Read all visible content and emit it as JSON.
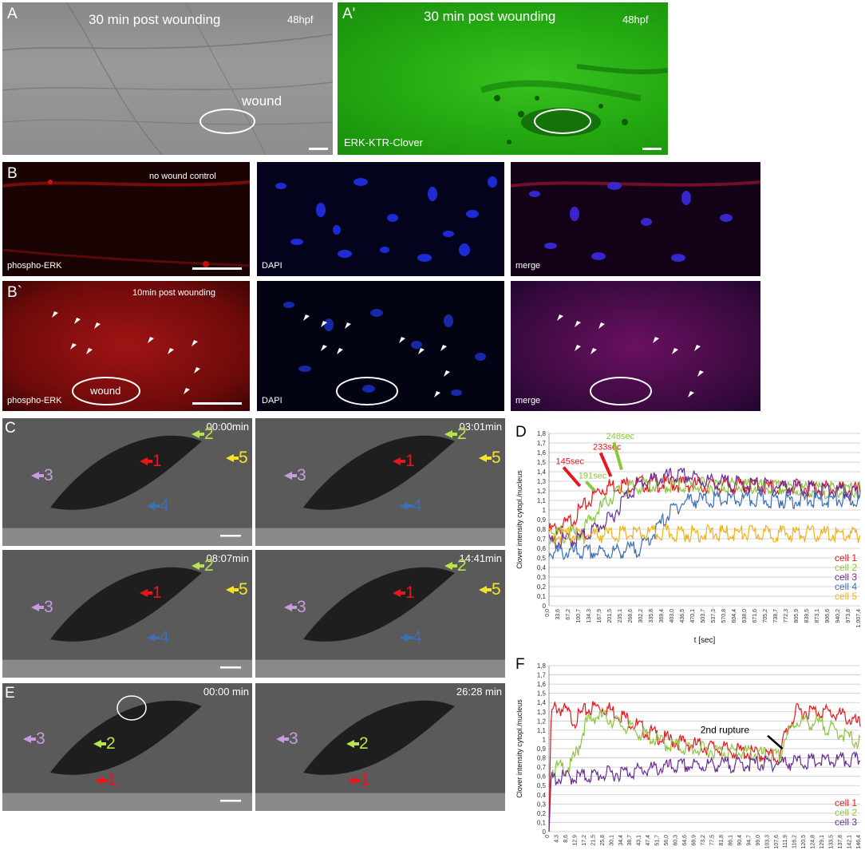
{
  "panel_a": {
    "letter": "A",
    "title": "30 min post wounding",
    "stage": "48hpf",
    "wound": "wound"
  },
  "panel_a2": {
    "letter": "A'",
    "title": "30 min post wounding",
    "stage": "48hpf",
    "reporter": "ERK-KTR-Clover"
  },
  "panel_b": {
    "letter": "B",
    "condition": "no wound control",
    "stain_red": "phospho-ERK",
    "stain_blue": "DAPI",
    "merge": "merge"
  },
  "panel_b2": {
    "letter": "B`",
    "condition": "10min post wounding",
    "stain_red": "phospho-ERK",
    "stain_blue": "DAPI",
    "merge": "merge",
    "wound": "wound"
  },
  "panel_c": {
    "letter": "C",
    "frames": [
      {
        "time": "00:00min",
        "labels": [
          "1",
          "2",
          "3",
          "4",
          "5"
        ]
      },
      {
        "time": "03:01min",
        "labels": [
          "1",
          "2",
          "3",
          "4",
          "5"
        ]
      },
      {
        "time": "08:07min",
        "labels": [
          "1",
          "2",
          "3",
          "4",
          "5"
        ]
      },
      {
        "time": "14:41min",
        "labels": [
          "1",
          "2",
          "3",
          "4",
          "5"
        ]
      }
    ]
  },
  "panel_e": {
    "letter": "E",
    "frames": [
      {
        "time": "00:00 min",
        "labels": [
          "1",
          "2",
          "3"
        ]
      },
      {
        "time": "26:28 min",
        "labels": [
          "1",
          "2",
          "3"
        ]
      }
    ]
  },
  "colors": {
    "cell1": "#e8161c",
    "cell2": "#8cc63f",
    "cell3": "#6a2c91",
    "cell4": "#3d6fb4",
    "cell5": "#f2b11b",
    "arrow3": "#c89be0",
    "arrow2": "#b7e34b",
    "arrow5": "#f5e425"
  },
  "chart_data": [
    {
      "panel": "D",
      "type": "line",
      "xlabel": "t [sec]",
      "ylabel": "Clover intensity cytopl./nucleus",
      "ylim": [
        0,
        1.8
      ],
      "yticks": [
        "0",
        "0,1",
        "0,2",
        "0,3",
        "0,4",
        "0,5",
        "0,6",
        "0,7",
        "0,8",
        "0,9",
        "1",
        "1,1",
        "1,2",
        "1,3",
        "1,4",
        "1,5",
        "1,6",
        "1,7",
        "1,8"
      ],
      "xticks": [
        "0,0",
        "33,6",
        "67,2",
        "100,7",
        "134,3",
        "167,9",
        "201,5",
        "235,1",
        "268,6",
        "302,2",
        "335,8",
        "369,4",
        "403,0",
        "436,5",
        "470,1",
        "503,7",
        "537,3",
        "570,8",
        "604,4",
        "638,0",
        "671,6",
        "705,2",
        "738,7",
        "772,3",
        "805,9",
        "839,5",
        "873,1",
        "906,6",
        "940,2",
        "973,8",
        "1.007,4"
      ],
      "xrange": [
        0,
        1007.4
      ],
      "grid": true,
      "legend_position": "bottom-right",
      "series": [
        {
          "name": "cell 1",
          "x": [
            0,
            60,
            120,
            160,
            200,
            300,
            400,
            500,
            600,
            700,
            800,
            900,
            1007
          ],
          "values": [
            0.82,
            0.9,
            1.1,
            1.25,
            1.3,
            1.32,
            1.32,
            1.3,
            1.3,
            1.28,
            1.28,
            1.27,
            1.25
          ]
        },
        {
          "name": "cell 2",
          "x": [
            0,
            100,
            150,
            190,
            230,
            300,
            400,
            500,
            600,
            700,
            800,
            900,
            1007
          ],
          "values": [
            0.78,
            0.8,
            1.0,
            1.15,
            1.25,
            1.3,
            1.3,
            1.3,
            1.3,
            1.28,
            1.26,
            1.25,
            1.25
          ]
        },
        {
          "name": "cell 3",
          "x": [
            0,
            100,
            200,
            250,
            300,
            400,
            450,
            500,
            600,
            700,
            800,
            900,
            1007
          ],
          "values": [
            0.7,
            0.75,
            0.95,
            1.2,
            1.33,
            1.4,
            1.4,
            1.35,
            1.32,
            1.3,
            1.28,
            1.25,
            1.2
          ]
        },
        {
          "name": "cell 4",
          "x": [
            0,
            200,
            300,
            350,
            400,
            450,
            500,
            600,
            700,
            800,
            900,
            1007
          ],
          "values": [
            0.6,
            0.6,
            0.65,
            0.85,
            1.05,
            1.15,
            1.15,
            1.15,
            1.15,
            1.15,
            1.15,
            1.15
          ]
        },
        {
          "name": "cell 5",
          "x": [
            0,
            200,
            400,
            600,
            800,
            1007
          ],
          "values": [
            0.78,
            0.79,
            0.8,
            0.8,
            0.8,
            0.78
          ]
        }
      ],
      "annotations": [
        {
          "text": "145sec",
          "series": "cell 1"
        },
        {
          "text": "191sec",
          "series": "cell 2"
        },
        {
          "text": "233sec",
          "series": "cell 1"
        },
        {
          "text": "248sec",
          "series": "cell 2"
        }
      ]
    },
    {
      "panel": "F",
      "type": "line",
      "xlabel": "",
      "ylabel": "Clover intensity cytopl./nucleus",
      "ylim": [
        0,
        1.8
      ],
      "yticks": [
        "0",
        "0,1",
        "0,2",
        "0,3",
        "0,4",
        "0,5",
        "0,6",
        "0,7",
        "0,8",
        "0,9",
        "1",
        "1,1",
        "1,2",
        "1,3",
        "1,4",
        "1,5",
        "1,6",
        "1,7",
        "1,8"
      ],
      "xticks": [
        "0",
        "4,3",
        "8,6",
        "12,9",
        "17,2",
        "21,5",
        "25,8",
        "30,1",
        "34,4",
        "38,7",
        "43,1",
        "47,4",
        "51,7",
        "56,0",
        "60,3",
        "64,6",
        "68,9",
        "73,2",
        "77,5",
        "81,8",
        "86,1",
        "90,4",
        "94,7",
        "99,0",
        "103,3",
        "107,6",
        "111,9",
        "116,2",
        "120,5",
        "124,8",
        "129,1",
        "133,5",
        "137,8",
        "142,1",
        "146,4"
      ],
      "xrange": [
        0,
        148
      ],
      "grid": true,
      "legend_position": "bottom-right",
      "series": [
        {
          "name": "cell 1",
          "x": [
            0,
            1,
            3,
            8,
            12,
            17,
            22,
            28,
            35,
            45,
            55,
            65,
            80,
            95,
            110,
            112,
            118,
            130,
            140,
            148
          ],
          "values": [
            0.0,
            1.3,
            1.4,
            1.35,
            1.25,
            1.35,
            1.4,
            1.38,
            1.3,
            1.15,
            1.05,
            1.0,
            0.95,
            0.9,
            0.85,
            1.1,
            1.35,
            1.35,
            1.3,
            1.2
          ]
        },
        {
          "name": "cell 2",
          "x": [
            0,
            1,
            10,
            14,
            17,
            22,
            28,
            35,
            45,
            55,
            65,
            80,
            95,
            110,
            112,
            118,
            130,
            140,
            148
          ],
          "values": [
            0.0,
            0.72,
            0.75,
            0.95,
            1.2,
            1.3,
            1.28,
            1.2,
            1.1,
            1.0,
            0.95,
            0.92,
            0.9,
            0.85,
            1.05,
            1.25,
            1.2,
            1.1,
            1.0
          ]
        },
        {
          "name": "cell 3",
          "x": [
            0,
            1,
            20,
            40,
            60,
            80,
            100,
            120,
            148
          ],
          "values": [
            0.0,
            0.62,
            0.65,
            0.7,
            0.75,
            0.77,
            0.78,
            0.8,
            0.82
          ]
        }
      ],
      "annotations": [
        {
          "text": "2nd rupture"
        }
      ]
    }
  ],
  "panel_d_letter": "D",
  "panel_f_letter": "F"
}
